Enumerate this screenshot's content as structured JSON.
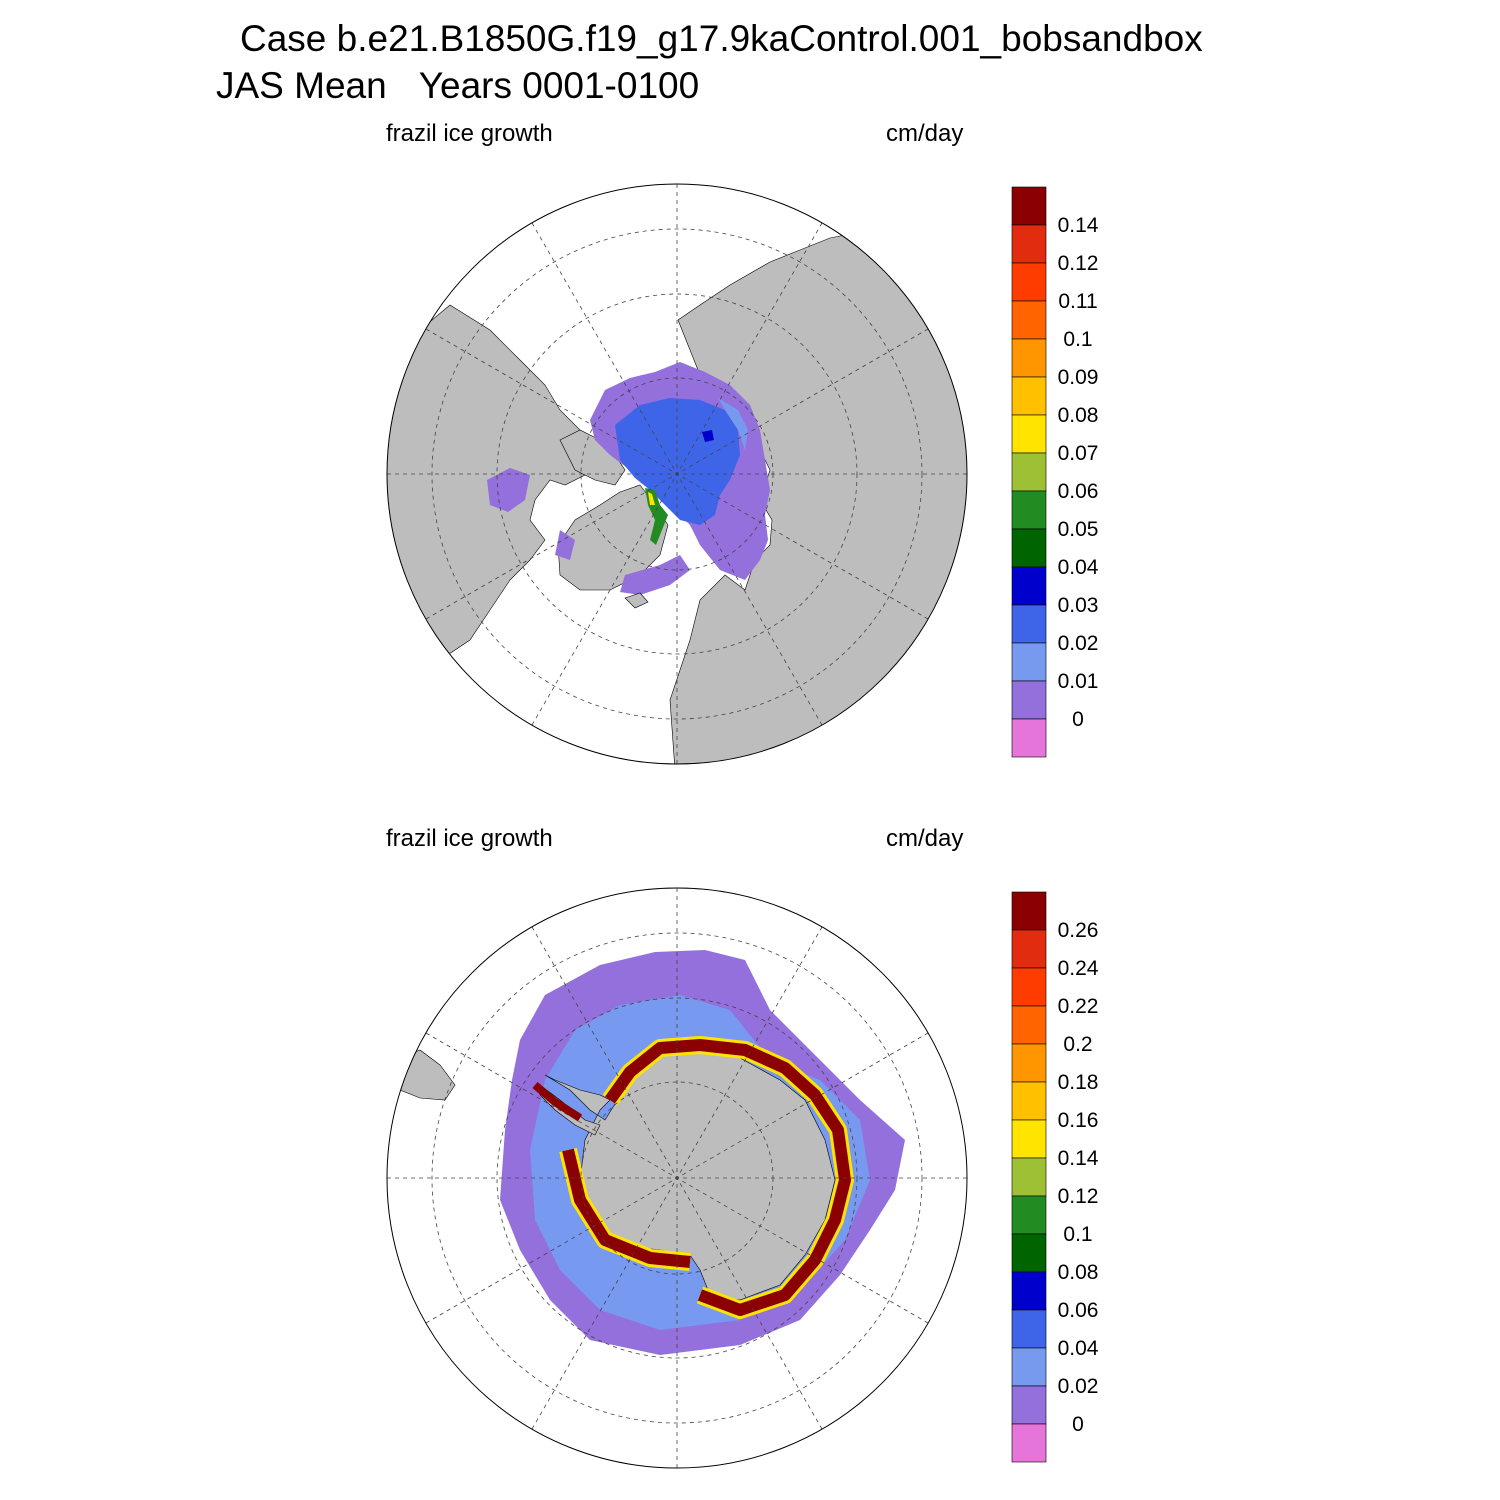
{
  "title": {
    "line1": "Case b.e21.B1850G.f19_g17.9kaControl.001_bobsandbox",
    "line2_left": "JAS Mean",
    "line2_right": "Years 0001-0100"
  },
  "panels": [
    {
      "id": "north",
      "left_label": "frazil ice growth",
      "right_label": "cm/day",
      "colorbar": {
        "labels": [
          "0.14",
          "0.12",
          "0.11",
          "0.1",
          "0.09",
          "0.08",
          "0.07",
          "0.06",
          "0.05",
          "0.04",
          "0.03",
          "0.02",
          "0.01",
          "0"
        ],
        "colors": [
          "#8b0000",
          "#e12c10",
          "#ff3c00",
          "#ff6400",
          "#ff9600",
          "#ffc000",
          "#ffe400",
          "#9dc034",
          "#228b22",
          "#006400",
          "#0000cd",
          "#3e65e8",
          "#7799f0",
          "#9370db",
          "#e774d9"
        ]
      }
    },
    {
      "id": "south",
      "left_label": "frazil ice growth",
      "right_label": "cm/day",
      "colorbar": {
        "labels": [
          "0.26",
          "0.24",
          "0.22",
          "0.2",
          "0.18",
          "0.16",
          "0.14",
          "0.12",
          "0.1",
          "0.08",
          "0.06",
          "0.04",
          "0.02",
          "0"
        ],
        "colors": [
          "#8b0000",
          "#e12c10",
          "#ff3c00",
          "#ff6400",
          "#ff9600",
          "#ffc000",
          "#ffe400",
          "#9dc034",
          "#228b22",
          "#006400",
          "#0000cd",
          "#3e65e8",
          "#7799f0",
          "#9370db",
          "#e774d9"
        ]
      }
    }
  ],
  "map_colors": {
    "land": "#bdbdbd",
    "ocean": "#ffffff",
    "grid": "#444444"
  }
}
